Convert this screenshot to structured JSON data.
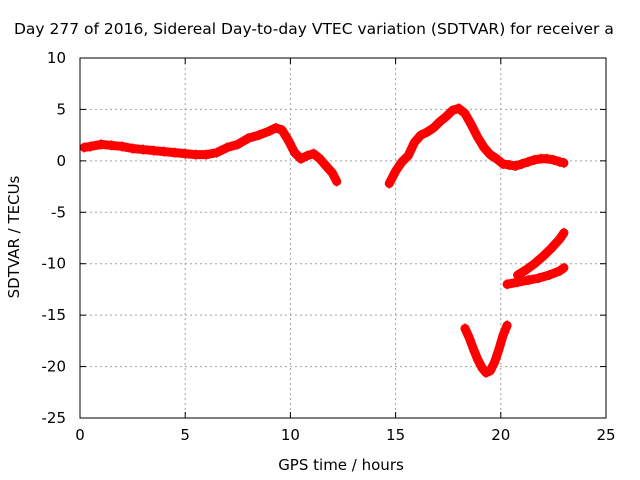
{
  "chart_data": {
    "type": "scatter",
    "title": "Day 277 of 2016, Sidereal Day-to-day VTEC variation (SDTVAR) for receiver a",
    "xlabel": "GPS time / hours",
    "ylabel": "SDTVAR / TECUs",
    "xlim": [
      0,
      25
    ],
    "ylim": [
      -25,
      10
    ],
    "xticks": [
      0,
      5,
      10,
      15,
      20,
      25
    ],
    "yticks": [
      -25,
      -20,
      -15,
      -10,
      -5,
      0,
      5,
      10
    ],
    "grid": true,
    "legend": "none",
    "color": "#ff0000",
    "series": [
      {
        "x": [
          0.2,
          0.5,
          1.0,
          1.5,
          2.0,
          2.5,
          3.0,
          3.5,
          4.0,
          4.5,
          5.0,
          5.5,
          6.0,
          6.5,
          7.0,
          7.5,
          8.0,
          8.5,
          9.0,
          9.3,
          9.6,
          9.9,
          10.2,
          10.5,
          10.8,
          11.1,
          11.4,
          11.7,
          12.0,
          12.2
        ],
        "y": [
          1.3,
          1.4,
          1.6,
          1.5,
          1.4,
          1.2,
          1.1,
          1.0,
          0.9,
          0.8,
          0.7,
          0.6,
          0.6,
          0.8,
          1.3,
          1.6,
          2.2,
          2.5,
          2.9,
          3.2,
          3.0,
          2.0,
          0.8,
          0.2,
          0.5,
          0.7,
          0.2,
          -0.5,
          -1.2,
          -2.0
        ]
      },
      {
        "x": [
          14.7,
          15.0,
          15.3,
          15.6,
          15.9,
          16.2,
          16.5,
          16.8,
          17.1,
          17.4,
          17.7,
          18.0,
          18.3,
          18.6,
          18.9,
          19.2,
          19.5,
          19.8,
          20.1,
          20.4,
          20.7,
          21.0,
          21.3,
          21.6,
          21.9,
          22.2,
          22.5,
          22.8,
          23.0
        ],
        "y": [
          -2.2,
          -1.0,
          -0.1,
          0.5,
          1.8,
          2.5,
          2.8,
          3.2,
          3.8,
          4.3,
          4.9,
          5.1,
          4.6,
          3.5,
          2.3,
          1.3,
          0.6,
          0.2,
          -0.3,
          -0.4,
          -0.5,
          -0.3,
          -0.1,
          0.1,
          0.2,
          0.2,
          0.1,
          -0.1,
          -0.2
        ]
      },
      {
        "x": [
          18.3,
          18.5,
          18.7,
          18.9,
          19.1,
          19.3,
          19.5,
          19.7,
          19.9,
          20.1,
          20.3
        ],
        "y": [
          -16.3,
          -17.2,
          -18.3,
          -19.3,
          -20.1,
          -20.6,
          -20.4,
          -19.6,
          -18.4,
          -17.0,
          -16.0
        ]
      },
      {
        "x": [
          20.3,
          20.8,
          21.3,
          21.8,
          22.3,
          22.8,
          23.0
        ],
        "y": [
          -12.0,
          -11.8,
          -11.6,
          -11.4,
          -11.1,
          -10.7,
          -10.4
        ]
      },
      {
        "x": [
          20.8,
          21.2,
          21.6,
          22.0,
          22.4,
          22.8,
          23.0
        ],
        "y": [
          -11.1,
          -10.6,
          -10.0,
          -9.3,
          -8.5,
          -7.6,
          -7.0
        ]
      }
    ]
  }
}
